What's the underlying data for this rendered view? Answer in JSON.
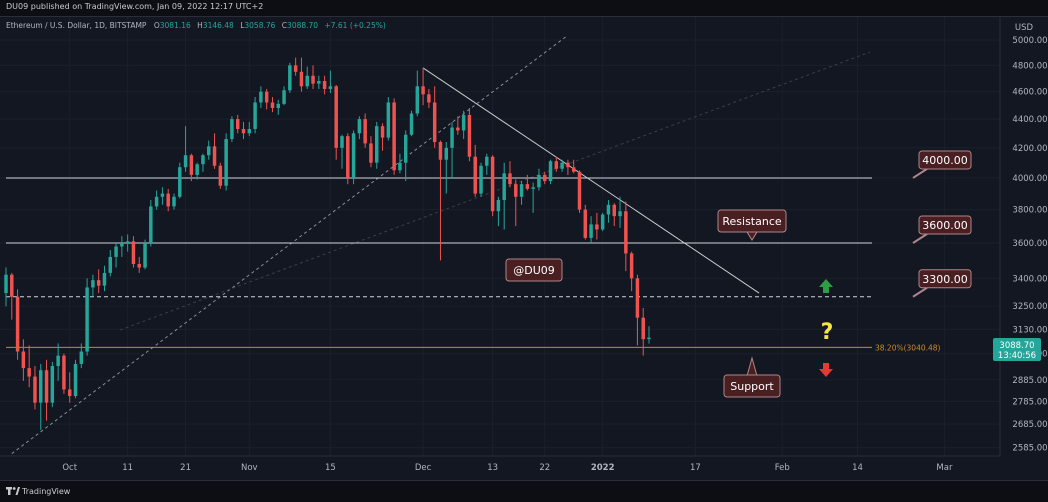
{
  "header": {
    "published": "DU09 published on TradingView.com, Jan 09, 2022 12:17 UTC+2"
  },
  "footer": {
    "brand": "TradingView"
  },
  "legend": {
    "symbol": "Ethereum / U.S. Dollar, 1D, BITSTAMP",
    "open_label": "O",
    "open": "3081.16",
    "high_label": "H",
    "high": "3146.48",
    "low_label": "L",
    "low": "3058.76",
    "close_label": "C",
    "close": "3088.70",
    "change": "+7.61 (+0.25%)"
  },
  "price_axis": {
    "currency": "USD",
    "current_price": "3088.70",
    "countdown": "13:40:56"
  },
  "colors": {
    "background": "#131722",
    "up_candle": "#26a69a",
    "down_candle": "#ef5350",
    "callout_fill": "#4a1f22",
    "callout_border": "#b0868a",
    "fib_line": "#c98a2b",
    "up_arrow": "#2e9e45",
    "down_arrow": "#e53935",
    "question": "#f5e642",
    "price_badge": "#26a69a"
  },
  "chart_data": {
    "type": "candlestick",
    "y_scale": "log",
    "ylim": [
      2550,
      5050
    ],
    "xlim": [
      "2021-09-20",
      "2022-03-08"
    ],
    "price_ticks": [
      "5000.00",
      "4800.00",
      "4600.00",
      "4400.00",
      "4200.00",
      "4000.00",
      "3800.00",
      "3600.00",
      "3400.00",
      "3250.00",
      "3130.00",
      "3010.00",
      "2885.00",
      "2785.00",
      "2685.00",
      "2585.00"
    ],
    "x_ticks": [
      {
        "date": "2021-10-01",
        "label": "Oct"
      },
      {
        "date": "2021-10-11",
        "label": "11"
      },
      {
        "date": "2021-10-21",
        "label": "21"
      },
      {
        "date": "2021-11-01",
        "label": "Nov"
      },
      {
        "date": "2021-11-15",
        "label": "15"
      },
      {
        "date": "2021-12-01",
        "label": "Dec"
      },
      {
        "date": "2021-12-13",
        "label": "13"
      },
      {
        "date": "2021-12-22",
        "label": "22"
      },
      {
        "date": "2022-01-01",
        "label": "2022"
      },
      {
        "date": "2022-01-17",
        "label": "17"
      },
      {
        "date": "2022-02-01",
        "label": "Feb"
      },
      {
        "date": "2022-02-14",
        "label": "14"
      },
      {
        "date": "2022-03-01",
        "label": "Mar"
      }
    ],
    "levels": [
      {
        "price": 4000,
        "style": "solid",
        "label": "4000.00"
      },
      {
        "price": 3600,
        "style": "solid",
        "label": "3600.00"
      },
      {
        "price": 3300,
        "style": "dashed",
        "label": "3300.00"
      }
    ],
    "fib_level": {
      "price": 3040.48,
      "label": "38.20%(3040.48)"
    },
    "resistance_trendline": {
      "from": {
        "date": "2021-12-01",
        "price": 4780
      },
      "to": {
        "date": "2022-01-28",
        "price": 3320
      }
    },
    "support_trendline": {
      "from": {
        "date": "2021-09-21",
        "price": 2560
      },
      "to": {
        "date": "2021-12-26",
        "price": 5040
      }
    },
    "annotations": {
      "resistance": "Resistance",
      "support": "Support",
      "watermark": "@DU09",
      "question": "?"
    },
    "candles": [
      {
        "date": "2021-09-20",
        "o": 3320,
        "h": 3460,
        "l": 3250,
        "c": 3420
      },
      {
        "date": "2021-09-21",
        "o": 3420,
        "h": 3430,
        "l": 3180,
        "c": 3300
      },
      {
        "date": "2021-09-22",
        "o": 3300,
        "h": 3340,
        "l": 2980,
        "c": 3020
      },
      {
        "date": "2021-09-23",
        "o": 3020,
        "h": 3080,
        "l": 2880,
        "c": 2940
      },
      {
        "date": "2021-09-24",
        "o": 2940,
        "h": 3050,
        "l": 2850,
        "c": 2900
      },
      {
        "date": "2021-09-25",
        "o": 2900,
        "h": 2950,
        "l": 2750,
        "c": 2780
      },
      {
        "date": "2021-09-26",
        "o": 2780,
        "h": 2960,
        "l": 2660,
        "c": 2930
      },
      {
        "date": "2021-09-27",
        "o": 2930,
        "h": 2980,
        "l": 2700,
        "c": 2780
      },
      {
        "date": "2021-09-28",
        "o": 2780,
        "h": 2970,
        "l": 2760,
        "c": 2950
      },
      {
        "date": "2021-09-29",
        "o": 2950,
        "h": 3060,
        "l": 2880,
        "c": 3000
      },
      {
        "date": "2021-09-30",
        "o": 3000,
        "h": 3010,
        "l": 2820,
        "c": 2840
      },
      {
        "date": "2021-10-01",
        "o": 2840,
        "h": 2920,
        "l": 2780,
        "c": 2810
      },
      {
        "date": "2021-10-02",
        "o": 2810,
        "h": 2980,
        "l": 2800,
        "c": 2960
      },
      {
        "date": "2021-10-03",
        "o": 2960,
        "h": 3060,
        "l": 2940,
        "c": 3020
      },
      {
        "date": "2021-10-04",
        "o": 3020,
        "h": 3400,
        "l": 3000,
        "c": 3350
      },
      {
        "date": "2021-10-05",
        "o": 3350,
        "h": 3420,
        "l": 3300,
        "c": 3390
      },
      {
        "date": "2021-10-06",
        "o": 3390,
        "h": 3450,
        "l": 3320,
        "c": 3360
      },
      {
        "date": "2021-10-07",
        "o": 3360,
        "h": 3470,
        "l": 3330,
        "c": 3430
      },
      {
        "date": "2021-10-08",
        "o": 3430,
        "h": 3560,
        "l": 3410,
        "c": 3520
      },
      {
        "date": "2021-10-09",
        "o": 3520,
        "h": 3600,
        "l": 3460,
        "c": 3580
      },
      {
        "date": "2021-10-10",
        "o": 3580,
        "h": 3640,
        "l": 3520,
        "c": 3600
      },
      {
        "date": "2021-10-11",
        "o": 3600,
        "h": 3650,
        "l": 3550,
        "c": 3610
      },
      {
        "date": "2021-10-12",
        "o": 3610,
        "h": 3640,
        "l": 3460,
        "c": 3480
      },
      {
        "date": "2021-10-13",
        "o": 3480,
        "h": 3520,
        "l": 3430,
        "c": 3460
      },
      {
        "date": "2021-10-14",
        "o": 3460,
        "h": 3620,
        "l": 3450,
        "c": 3600
      },
      {
        "date": "2021-10-15",
        "o": 3600,
        "h": 3860,
        "l": 3580,
        "c": 3820
      },
      {
        "date": "2021-10-16",
        "o": 3820,
        "h": 3920,
        "l": 3800,
        "c": 3880
      },
      {
        "date": "2021-10-17",
        "o": 3880,
        "h": 3940,
        "l": 3830,
        "c": 3900
      },
      {
        "date": "2021-10-18",
        "o": 3900,
        "h": 3930,
        "l": 3790,
        "c": 3820
      },
      {
        "date": "2021-10-19",
        "o": 3820,
        "h": 3900,
        "l": 3800,
        "c": 3880
      },
      {
        "date": "2021-10-20",
        "o": 3880,
        "h": 4100,
        "l": 3870,
        "c": 4070
      },
      {
        "date": "2021-10-21",
        "o": 4070,
        "h": 4350,
        "l": 4040,
        "c": 4150
      },
      {
        "date": "2021-10-22",
        "o": 4150,
        "h": 4160,
        "l": 3980,
        "c": 4020
      },
      {
        "date": "2021-10-23",
        "o": 4020,
        "h": 4100,
        "l": 3990,
        "c": 4090
      },
      {
        "date": "2021-10-24",
        "o": 4090,
        "h": 4160,
        "l": 4040,
        "c": 4150
      },
      {
        "date": "2021-10-25",
        "o": 4150,
        "h": 4250,
        "l": 4120,
        "c": 4210
      },
      {
        "date": "2021-10-26",
        "o": 4210,
        "h": 4300,
        "l": 4060,
        "c": 4080
      },
      {
        "date": "2021-10-27",
        "o": 4080,
        "h": 4100,
        "l": 3930,
        "c": 3950
      },
      {
        "date": "2021-10-28",
        "o": 3950,
        "h": 4300,
        "l": 3920,
        "c": 4260
      },
      {
        "date": "2021-10-29",
        "o": 4260,
        "h": 4420,
        "l": 4240,
        "c": 4400
      },
      {
        "date": "2021-10-30",
        "o": 4400,
        "h": 4430,
        "l": 4300,
        "c": 4330
      },
      {
        "date": "2021-10-31",
        "o": 4330,
        "h": 4380,
        "l": 4260,
        "c": 4300
      },
      {
        "date": "2021-11-01",
        "o": 4300,
        "h": 4380,
        "l": 4280,
        "c": 4330
      },
      {
        "date": "2021-11-02",
        "o": 4330,
        "h": 4560,
        "l": 4300,
        "c": 4520
      },
      {
        "date": "2021-11-03",
        "o": 4520,
        "h": 4640,
        "l": 4480,
        "c": 4600
      },
      {
        "date": "2021-11-04",
        "o": 4600,
        "h": 4620,
        "l": 4470,
        "c": 4520
      },
      {
        "date": "2021-11-05",
        "o": 4520,
        "h": 4560,
        "l": 4450,
        "c": 4480
      },
      {
        "date": "2021-11-06",
        "o": 4480,
        "h": 4540,
        "l": 4430,
        "c": 4510
      },
      {
        "date": "2021-11-07",
        "o": 4510,
        "h": 4640,
        "l": 4500,
        "c": 4610
      },
      {
        "date": "2021-11-08",
        "o": 4610,
        "h": 4820,
        "l": 4590,
        "c": 4800
      },
      {
        "date": "2021-11-09",
        "o": 4800,
        "h": 4860,
        "l": 4720,
        "c": 4750
      },
      {
        "date": "2021-11-10",
        "o": 4750,
        "h": 4860,
        "l": 4600,
        "c": 4640
      },
      {
        "date": "2021-11-11",
        "o": 4640,
        "h": 4790,
        "l": 4620,
        "c": 4720
      },
      {
        "date": "2021-11-12",
        "o": 4720,
        "h": 4800,
        "l": 4620,
        "c": 4660
      },
      {
        "date": "2021-11-13",
        "o": 4660,
        "h": 4720,
        "l": 4620,
        "c": 4680
      },
      {
        "date": "2021-11-14",
        "o": 4680,
        "h": 4720,
        "l": 4580,
        "c": 4620
      },
      {
        "date": "2021-11-15",
        "o": 4620,
        "h": 4760,
        "l": 4590,
        "c": 4640
      },
      {
        "date": "2021-11-16",
        "o": 4640,
        "h": 4650,
        "l": 4120,
        "c": 4200
      },
      {
        "date": "2021-11-17",
        "o": 4200,
        "h": 4290,
        "l": 4060,
        "c": 4280
      },
      {
        "date": "2021-11-18",
        "o": 4280,
        "h": 4300,
        "l": 3960,
        "c": 4000
      },
      {
        "date": "2021-11-19",
        "o": 4000,
        "h": 4320,
        "l": 3960,
        "c": 4300
      },
      {
        "date": "2021-11-20",
        "o": 4300,
        "h": 4420,
        "l": 4260,
        "c": 4400
      },
      {
        "date": "2021-11-21",
        "o": 4400,
        "h": 4440,
        "l": 4200,
        "c": 4230
      },
      {
        "date": "2021-11-22",
        "o": 4230,
        "h": 4280,
        "l": 4070,
        "c": 4100
      },
      {
        "date": "2021-11-23",
        "o": 4100,
        "h": 4380,
        "l": 4060,
        "c": 4350
      },
      {
        "date": "2021-11-24",
        "o": 4350,
        "h": 4370,
        "l": 4180,
        "c": 4270
      },
      {
        "date": "2021-11-25",
        "o": 4270,
        "h": 4560,
        "l": 4250,
        "c": 4520
      },
      {
        "date": "2021-11-26",
        "o": 4520,
        "h": 4550,
        "l": 4020,
        "c": 4050
      },
      {
        "date": "2021-11-27",
        "o": 4050,
        "h": 4160,
        "l": 4030,
        "c": 4100
      },
      {
        "date": "2021-11-28",
        "o": 4100,
        "h": 4320,
        "l": 3980,
        "c": 4290
      },
      {
        "date": "2021-11-29",
        "o": 4290,
        "h": 4460,
        "l": 4280,
        "c": 4440
      },
      {
        "date": "2021-11-30",
        "o": 4440,
        "h": 4760,
        "l": 4420,
        "c": 4640
      },
      {
        "date": "2021-12-01",
        "o": 4640,
        "h": 4780,
        "l": 4500,
        "c": 4580
      },
      {
        "date": "2021-12-02",
        "o": 4580,
        "h": 4620,
        "l": 4480,
        "c": 4520
      },
      {
        "date": "2021-12-03",
        "o": 4520,
        "h": 4640,
        "l": 4200,
        "c": 4240
      },
      {
        "date": "2021-12-04",
        "o": 4240,
        "h": 4250,
        "l": 3500,
        "c": 4120
      },
      {
        "date": "2021-12-05",
        "o": 4120,
        "h": 4240,
        "l": 3900,
        "c": 4200
      },
      {
        "date": "2021-12-06",
        "o": 4200,
        "h": 4380,
        "l": 4000,
        "c": 4340
      },
      {
        "date": "2021-12-07",
        "o": 4340,
        "h": 4420,
        "l": 4290,
        "c": 4320
      },
      {
        "date": "2021-12-08",
        "o": 4320,
        "h": 4460,
        "l": 4260,
        "c": 4430
      },
      {
        "date": "2021-12-09",
        "o": 4430,
        "h": 4480,
        "l": 4110,
        "c": 4140
      },
      {
        "date": "2021-12-10",
        "o": 4140,
        "h": 4220,
        "l": 3880,
        "c": 3900
      },
      {
        "date": "2021-12-11",
        "o": 3900,
        "h": 4100,
        "l": 3880,
        "c": 4080
      },
      {
        "date": "2021-12-12",
        "o": 4080,
        "h": 4160,
        "l": 4020,
        "c": 4140
      },
      {
        "date": "2021-12-13",
        "o": 4140,
        "h": 4150,
        "l": 3760,
        "c": 3790
      },
      {
        "date": "2021-12-14",
        "o": 3790,
        "h": 3880,
        "l": 3700,
        "c": 3860
      },
      {
        "date": "2021-12-15",
        "o": 3860,
        "h": 4100,
        "l": 3680,
        "c": 4030
      },
      {
        "date": "2021-12-16",
        "o": 4030,
        "h": 4110,
        "l": 3940,
        "c": 3960
      },
      {
        "date": "2021-12-17",
        "o": 3960,
        "h": 3990,
        "l": 3700,
        "c": 3880
      },
      {
        "date": "2021-12-18",
        "o": 3880,
        "h": 3980,
        "l": 3830,
        "c": 3960
      },
      {
        "date": "2021-12-19",
        "o": 3960,
        "h": 4020,
        "l": 3920,
        "c": 3930
      },
      {
        "date": "2021-12-20",
        "o": 3930,
        "h": 3970,
        "l": 3780,
        "c": 3940
      },
      {
        "date": "2021-12-21",
        "o": 3940,
        "h": 4060,
        "l": 3920,
        "c": 4020
      },
      {
        "date": "2021-12-22",
        "o": 4020,
        "h": 4040,
        "l": 3960,
        "c": 3980
      },
      {
        "date": "2021-12-23",
        "o": 3980,
        "h": 4120,
        "l": 3960,
        "c": 4110
      },
      {
        "date": "2021-12-24",
        "o": 4110,
        "h": 4140,
        "l": 4040,
        "c": 4060
      },
      {
        "date": "2021-12-25",
        "o": 4060,
        "h": 4120,
        "l": 4040,
        "c": 4100
      },
      {
        "date": "2021-12-26",
        "o": 4100,
        "h": 4120,
        "l": 4020,
        "c": 4070
      },
      {
        "date": "2021-12-27",
        "o": 4070,
        "h": 4120,
        "l": 4030,
        "c": 4040
      },
      {
        "date": "2021-12-28",
        "o": 4040,
        "h": 4050,
        "l": 3780,
        "c": 3800
      },
      {
        "date": "2021-12-29",
        "o": 3800,
        "h": 3830,
        "l": 3620,
        "c": 3630
      },
      {
        "date": "2021-12-30",
        "o": 3630,
        "h": 3760,
        "l": 3600,
        "c": 3710
      },
      {
        "date": "2021-12-31",
        "o": 3710,
        "h": 3780,
        "l": 3620,
        "c": 3680
      },
      {
        "date": "2022-01-01",
        "o": 3680,
        "h": 3780,
        "l": 3670,
        "c": 3770
      },
      {
        "date": "2022-01-02",
        "o": 3770,
        "h": 3860,
        "l": 3720,
        "c": 3830
      },
      {
        "date": "2022-01-03",
        "o": 3830,
        "h": 3840,
        "l": 3700,
        "c": 3760
      },
      {
        "date": "2022-01-04",
        "o": 3760,
        "h": 3880,
        "l": 3690,
        "c": 3790
      },
      {
        "date": "2022-01-05",
        "o": 3790,
        "h": 3850,
        "l": 3440,
        "c": 3540
      },
      {
        "date": "2022-01-06",
        "o": 3540,
        "h": 3550,
        "l": 3330,
        "c": 3400
      },
      {
        "date": "2022-01-07",
        "o": 3400,
        "h": 3420,
        "l": 3050,
        "c": 3190
      },
      {
        "date": "2022-01-08",
        "o": 3190,
        "h": 3240,
        "l": 3000,
        "c": 3081.16
      },
      {
        "date": "2022-01-09",
        "o": 3081.16,
        "h": 3146.48,
        "l": 3058.76,
        "c": 3088.7
      }
    ]
  }
}
